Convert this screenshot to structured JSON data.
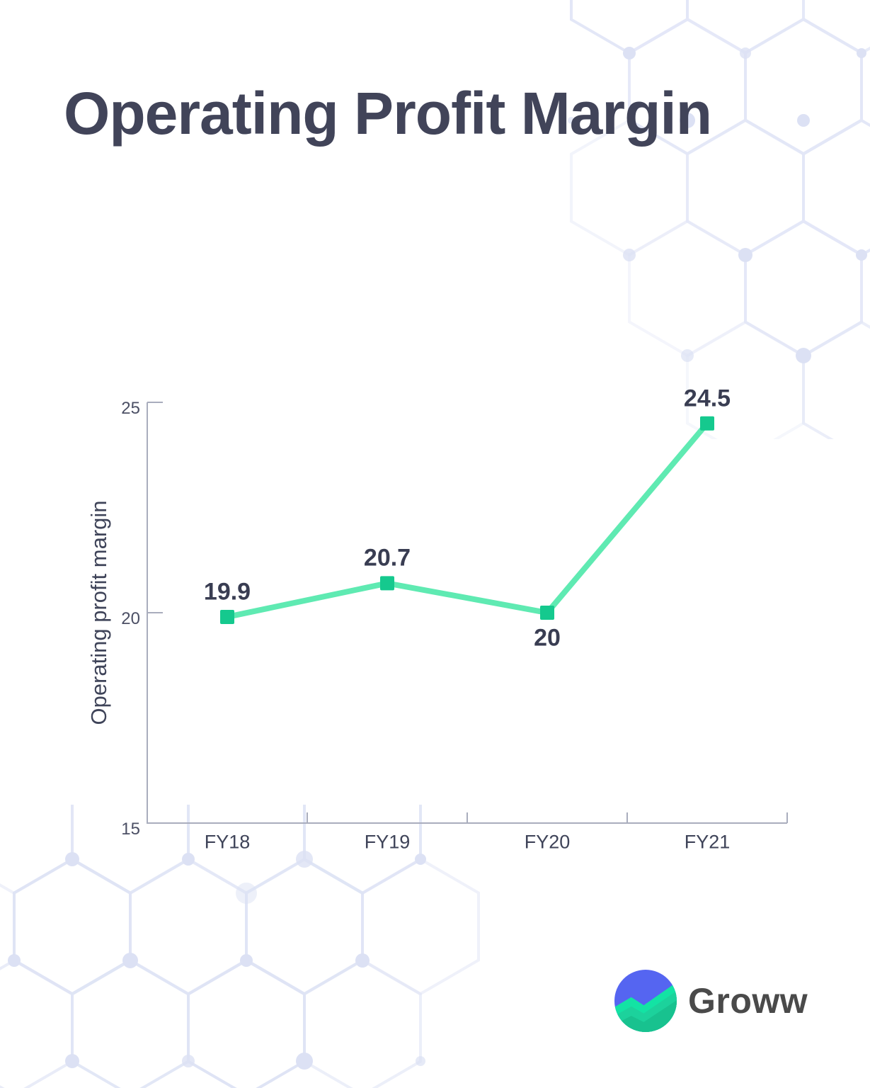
{
  "page": {
    "title": "Operating Profit Margin"
  },
  "chart_data": {
    "type": "line",
    "title": "Operating Profit Margin",
    "categories": [
      "FY18",
      "FY19",
      "FY20",
      "FY21"
    ],
    "series": [
      {
        "name": "Operating profit margin",
        "values": [
          19.9,
          20.7,
          20,
          24.5
        ]
      }
    ],
    "data_labels": [
      "19.9",
      "20.7",
      "20",
      "24.5"
    ],
    "label_positions": [
      "above",
      "above",
      "below",
      "above"
    ],
    "xlabel": "",
    "ylabel": "Operating profit margin",
    "ylim": [
      15,
      25
    ],
    "yticks": [
      15,
      20,
      25
    ],
    "grid": false,
    "legend": false,
    "line_color": "#5FEAB2",
    "marker_color": "#15C98E"
  },
  "branding": {
    "logo_text": "Groww",
    "logo_colors": {
      "blue": "#5565F1",
      "green_bright": "#13E3A4",
      "green_mid": "#1CD29C",
      "green_deep": "#18C28F"
    }
  },
  "colors": {
    "title_text": "#414459",
    "axis": "#A9ADBD",
    "tick_label": "#4C5065",
    "value_label": "#393D52"
  }
}
